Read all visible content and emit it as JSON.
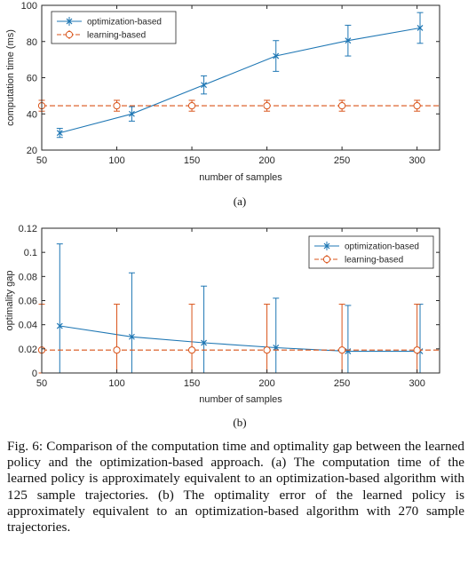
{
  "colors": {
    "optimization": "#1f77b4",
    "learning": "#d95319"
  },
  "chart_data": [
    {
      "type": "line",
      "subcaption": "(a)",
      "xlabel": "number of samples",
      "ylabel": "computation time (ms)",
      "xlim": [
        50,
        315
      ],
      "ylim": [
        20,
        100
      ],
      "xticks": [
        50,
        100,
        150,
        200,
        250,
        300
      ],
      "yticks": [
        20,
        40,
        60,
        80,
        100
      ],
      "grid": false,
      "legend_position": "top-left",
      "series": [
        {
          "name": "optimization-based",
          "marker": "x",
          "style": "solid",
          "x": [
            62,
            110,
            158,
            206,
            254,
            302
          ],
          "y": [
            29.5,
            40,
            56,
            72,
            80.5,
            87.5
          ],
          "err_low": [
            2.5,
            4,
            5,
            8.5,
            8.5,
            8.5
          ],
          "err_high": [
            2.5,
            4,
            5,
            8.5,
            8.5,
            8.5
          ]
        },
        {
          "name": "learning-based",
          "marker": "o",
          "style": "dashed",
          "x": [
            50,
            100,
            150,
            200,
            250,
            300
          ],
          "y": [
            44.5,
            44.5,
            44.5,
            44.5,
            44.5,
            44.5
          ],
          "line_y": 44.5,
          "err_low": [
            3,
            3,
            3,
            3,
            3,
            3
          ],
          "err_high": [
            3,
            3,
            3,
            3,
            3,
            3
          ]
        }
      ]
    },
    {
      "type": "line",
      "subcaption": "(b)",
      "xlabel": "number of samples",
      "ylabel": "optimality gap",
      "xlim": [
        50,
        315
      ],
      "ylim": [
        0,
        0.12
      ],
      "xticks": [
        50,
        100,
        150,
        200,
        250,
        300
      ],
      "yticks": [
        0,
        0.02,
        0.04,
        0.06,
        0.08,
        0.1,
        0.12
      ],
      "ytick_labels": [
        "0",
        "0.02",
        "0.04",
        "0.06",
        "0.08",
        "0.1",
        "0.12"
      ],
      "grid": false,
      "legend_position": "top-right",
      "series": [
        {
          "name": "optimization-based",
          "marker": "x",
          "style": "solid",
          "x": [
            62,
            110,
            158,
            206,
            254,
            302
          ],
          "y": [
            0.039,
            0.03,
            0.025,
            0.021,
            0.018,
            0.018
          ],
          "err_low": [
            0.039,
            0.03,
            0.025,
            0.021,
            0.018,
            0.018
          ],
          "err_high": [
            0.068,
            0.053,
            0.047,
            0.041,
            0.038,
            0.039
          ]
        },
        {
          "name": "learning-based",
          "marker": "o",
          "style": "dashed",
          "x": [
            50,
            100,
            150,
            200,
            250,
            300
          ],
          "y": [
            0.019,
            0.019,
            0.019,
            0.019,
            0.019,
            0.019
          ],
          "line_y": 0.019,
          "err_low": [
            0.019,
            0.019,
            0.019,
            0.019,
            0.019,
            0.019
          ],
          "err_high": [
            0.038,
            0.038,
            0.038,
            0.038,
            0.038,
            0.038
          ]
        }
      ]
    }
  ],
  "caption": "Fig. 6: Comparison of the computation time and optimality gap between the learned policy and the optimization-based approach. (a) The computation time of the learned policy is approximately equivalent to an optimization-based algorithm with 125 sample trajectories. (b) The optimality error of the learned policy is approximately equivalent to an optimization-based algorithm with 270 sample trajectories."
}
